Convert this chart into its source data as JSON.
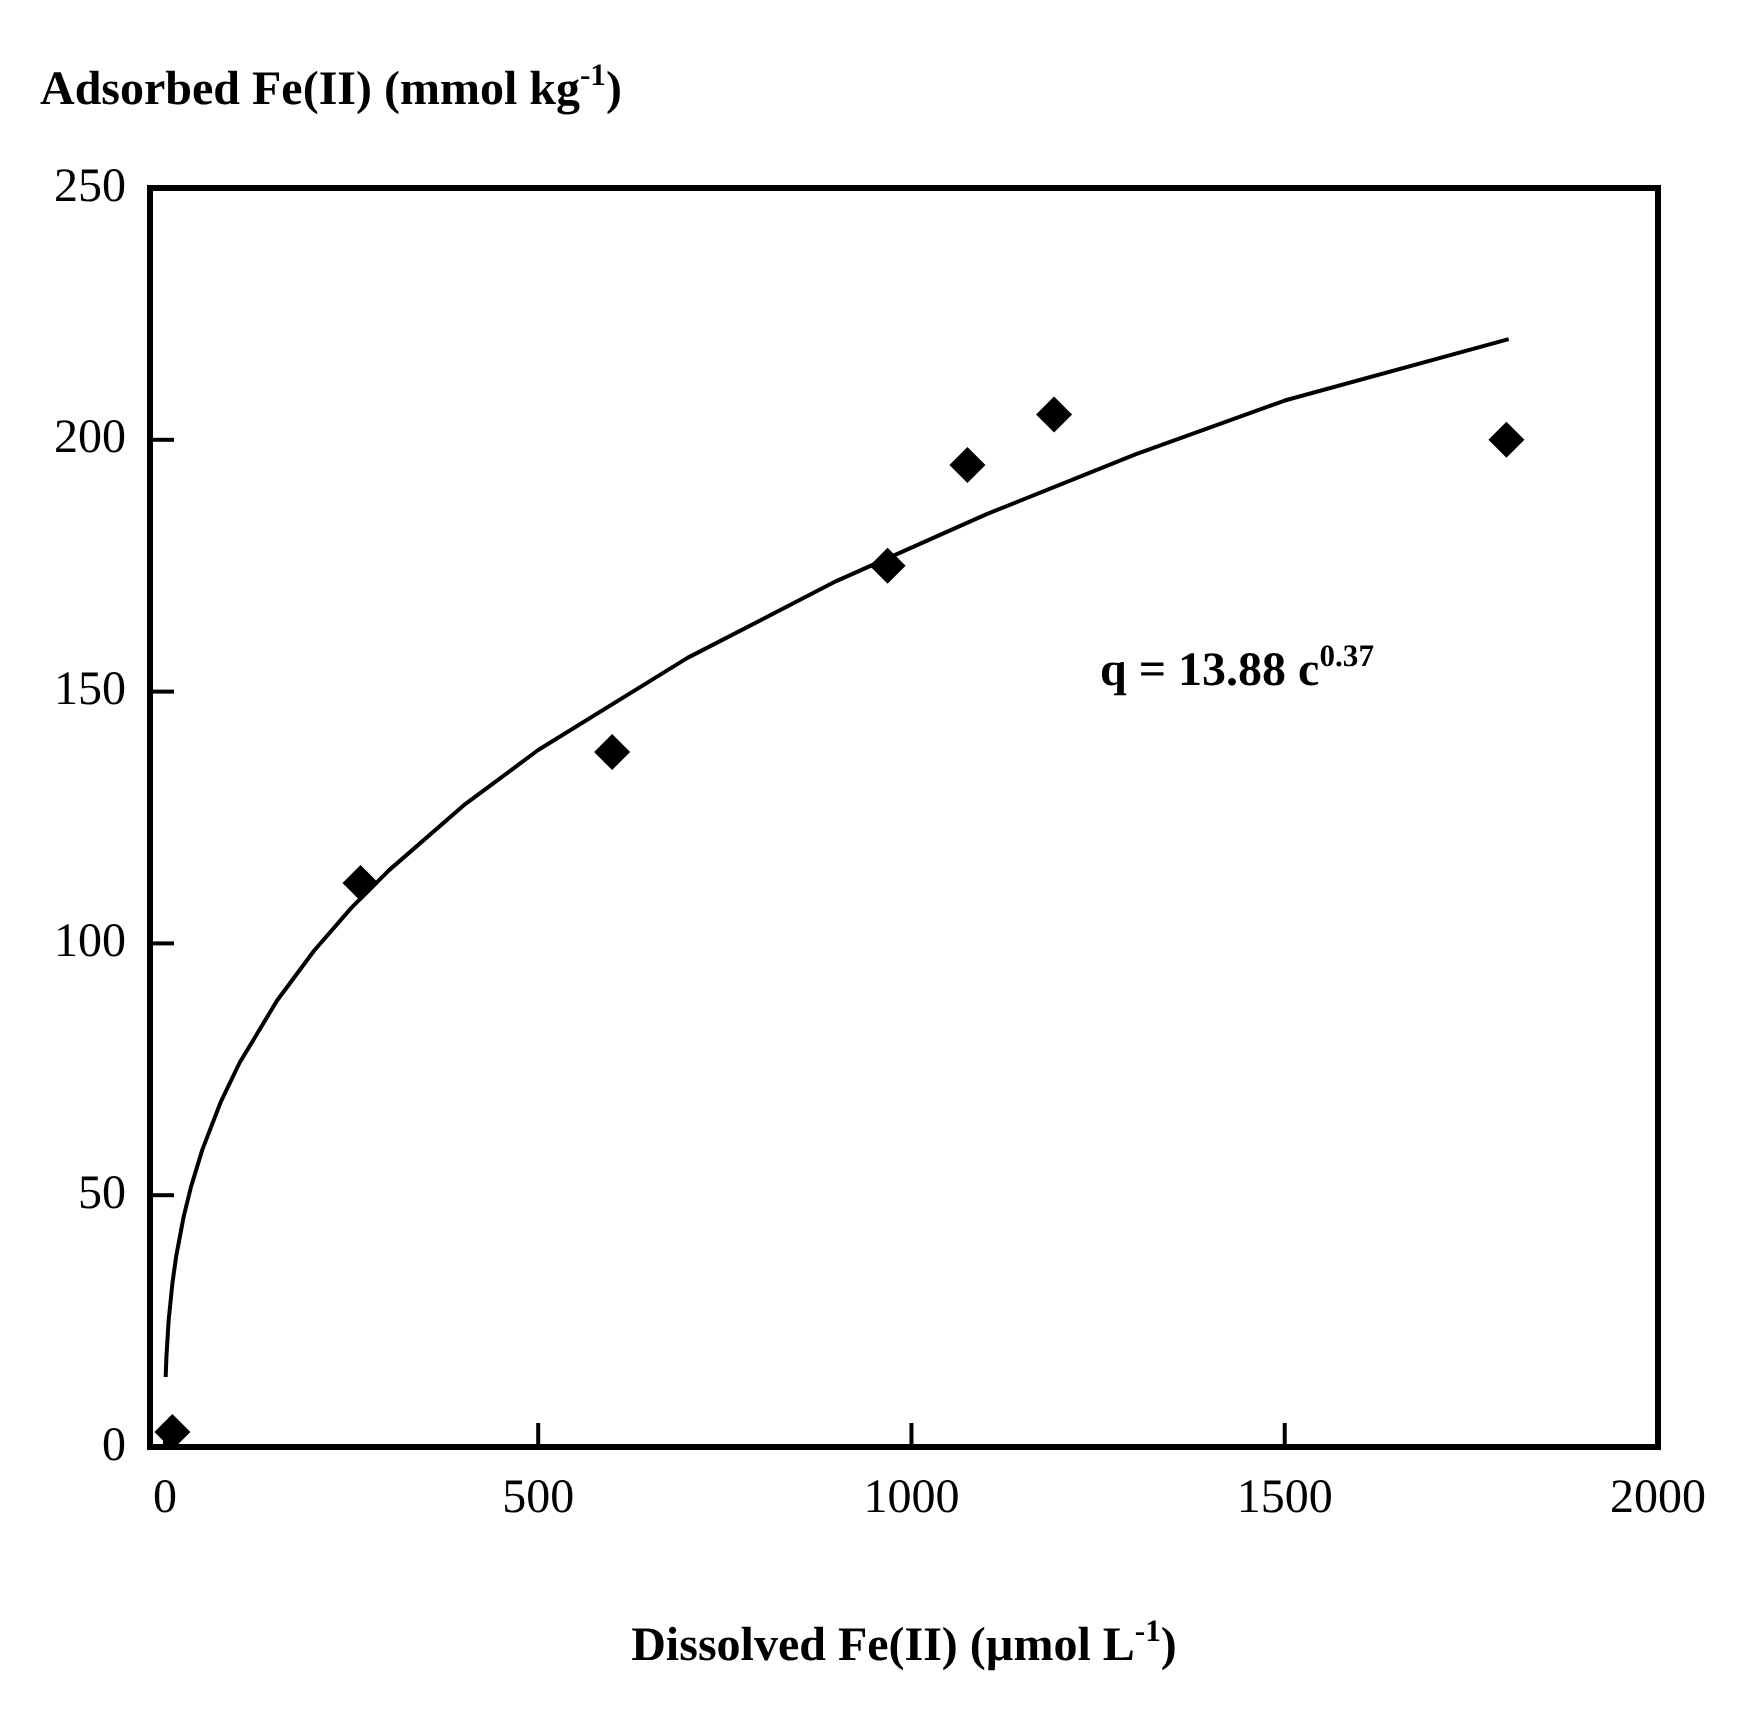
{
  "chart_data": {
    "type": "scatter",
    "xlabel": "Dissolved Fe(II) (µmol L$^{-1}$)",
    "ylabel": "Adsorbed Fe(II) (mmol kg$^{-1}$)",
    "annotations": [
      "q = 13.88 c$^{0.37}$"
    ],
    "xlim": [
      -20,
      2000
    ],
    "xticks": [
      0,
      500,
      1000,
      1500,
      2000
    ],
    "ylim": [
      0,
      250
    ],
    "yticks": [
      0,
      50,
      100,
      150,
      200,
      250
    ],
    "grid": false,
    "legend": false,
    "marker": "diamond",
    "series": [
      {
        "color": "#000000",
        "x": [
          10,
          262,
          599,
          968,
          1075,
          1191,
          1797
        ],
        "values": [
          3,
          112,
          138,
          175,
          195,
          205,
          200
        ]
      },
      {
        "type": "line",
        "color": "#000000",
        "marker": "none",
        "line_style": "solid",
        "x": [
          1,
          2,
          5,
          10,
          15,
          25,
          35,
          50,
          75,
          100,
          150,
          200,
          250,
          300,
          400,
          500,
          700,
          900,
          1100,
          1300,
          1500,
          1800
        ],
        "values": [
          13.9,
          17.9,
          25.2,
          32.5,
          37.8,
          45.7,
          51.7,
          59.0,
          68.6,
          76.3,
          88.6,
          98.6,
          107.1,
          114.5,
          127.4,
          138.4,
          156.7,
          172.0,
          185.2,
          197.1,
          207.8,
          220
        ]
      }
    ]
  }
}
